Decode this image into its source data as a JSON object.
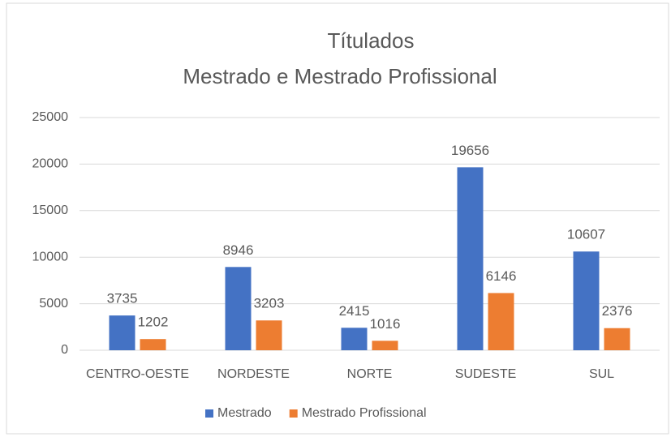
{
  "chart_data": {
    "type": "bar",
    "title": "Títulados",
    "subtitle": "Mestrado e Mestrado Profissional",
    "categories": [
      "CENTRO-OESTE",
      "NORDESTE",
      "NORTE",
      "SUDESTE",
      "SUL"
    ],
    "series": [
      {
        "name": "Mestrado",
        "color": "#4472c4",
        "values": [
          3735,
          8946,
          2415,
          19656,
          10607
        ]
      },
      {
        "name": "Mestrado Profissional",
        "color": "#ed7d31",
        "values": [
          1202,
          3203,
          1016,
          6146,
          2376
        ]
      }
    ],
    "ylim": [
      0,
      25000
    ],
    "yticks": [
      0,
      5000,
      10000,
      15000,
      20000,
      25000
    ],
    "grid": true,
    "legend": "bottom"
  }
}
